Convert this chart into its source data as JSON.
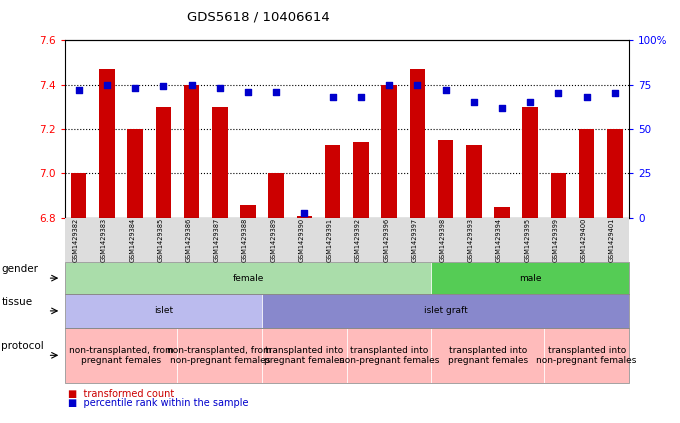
{
  "title": "GDS5618 / 10406614",
  "samples": [
    "GSM1429382",
    "GSM1429383",
    "GSM1429384",
    "GSM1429385",
    "GSM1429386",
    "GSM1429387",
    "GSM1429388",
    "GSM1429389",
    "GSM1429390",
    "GSM1429391",
    "GSM1429392",
    "GSM1429396",
    "GSM1429397",
    "GSM1429398",
    "GSM1429393",
    "GSM1429394",
    "GSM1429395",
    "GSM1429399",
    "GSM1429400",
    "GSM1429401"
  ],
  "bar_values": [
    7.0,
    7.47,
    7.2,
    7.3,
    7.4,
    7.3,
    6.86,
    7.0,
    6.81,
    7.13,
    7.14,
    7.4,
    7.47,
    7.15,
    7.13,
    6.85,
    7.3,
    7.0,
    7.2,
    7.2
  ],
  "dot_values": [
    72,
    75,
    73,
    74,
    75,
    73,
    71,
    71,
    3,
    68,
    68,
    75,
    75,
    72,
    65,
    62,
    65,
    70,
    68,
    70
  ],
  "ylim_left": [
    6.8,
    7.6
  ],
  "ylim_right": [
    0,
    100
  ],
  "yticks_left": [
    6.8,
    7.0,
    7.2,
    7.4,
    7.6
  ],
  "yticks_right": [
    0,
    25,
    50,
    75,
    100
  ],
  "ytick_labels_right": [
    "0",
    "25",
    "50",
    "75",
    "100%"
  ],
  "hlines": [
    7.0,
    7.2,
    7.4
  ],
  "bar_color": "#cc0000",
  "dot_color": "#0000cc",
  "gender_regions": [
    {
      "label": "female",
      "start": 0,
      "end": 13,
      "color": "#aaddaa"
    },
    {
      "label": "male",
      "start": 13,
      "end": 20,
      "color": "#55cc55"
    }
  ],
  "tissue_regions": [
    {
      "label": "islet",
      "start": 0,
      "end": 7,
      "color": "#bbbbee"
    },
    {
      "label": "islet graft",
      "start": 7,
      "end": 20,
      "color": "#8888cc"
    }
  ],
  "protocol_regions": [
    {
      "label": "non-transplanted, from\npregnant females",
      "start": 0,
      "end": 4,
      "color": "#ffbbbb"
    },
    {
      "label": "non-transplanted, from\nnon-pregnant females",
      "start": 4,
      "end": 7,
      "color": "#ffbbbb"
    },
    {
      "label": "transplanted into\npregnant females",
      "start": 7,
      "end": 10,
      "color": "#ffbbbb"
    },
    {
      "label": "transplanted into\nnon-pregnant females",
      "start": 10,
      "end": 13,
      "color": "#ffbbbb"
    },
    {
      "label": "transplanted into\npregnant females",
      "start": 13,
      "end": 17,
      "color": "#ffbbbb"
    },
    {
      "label": "transplanted into\nnon-pregnant females",
      "start": 17,
      "end": 20,
      "color": "#ffbbbb"
    }
  ],
  "bar_width": 0.55,
  "base_value": 6.8,
  "bg_color": "#dddddd",
  "label_fontsize": 6.5,
  "row_label_fontsize": 7.5,
  "tick_fontsize": 7.5
}
